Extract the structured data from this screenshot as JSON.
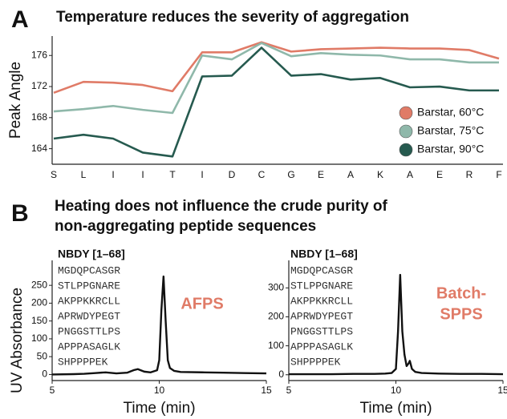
{
  "panels": {
    "a": "A",
    "b": "B",
    "b_title": [
      "Heating does not influence the crude purity of",
      "non-aggregating peptide sequences"
    ]
  },
  "chart_data": [
    {
      "type": "line",
      "title": "Temperature reduces the severity of aggregation",
      "ylabel": "Peak Angle",
      "categories": [
        "S",
        "L",
        "I",
        "I",
        "T",
        "I",
        "D",
        "C",
        "G",
        "E",
        "A",
        "K",
        "A",
        "E",
        "R",
        "F"
      ],
      "ylim": [
        162,
        178.5
      ],
      "yticks": [
        164,
        168,
        172,
        176
      ],
      "legend": "lower right",
      "series": [
        {
          "name": "Barstar, 60°C",
          "color": "#e07b67",
          "values": [
            171.2,
            172.6,
            172.5,
            172.2,
            171.4,
            176.4,
            176.4,
            177.7,
            176.5,
            176.8,
            176.9,
            177.0,
            176.9,
            176.9,
            176.7,
            175.6
          ]
        },
        {
          "name": "Barstar, 75°C",
          "color": "#8fb8aa",
          "values": [
            168.8,
            169.1,
            169.5,
            169.0,
            168.6,
            176.0,
            175.5,
            177.6,
            175.9,
            176.3,
            176.1,
            176.0,
            175.5,
            175.5,
            175.1,
            175.1
          ]
        },
        {
          "name": "Barstar, 90°C",
          "color": "#265a4f",
          "values": [
            165.3,
            165.8,
            165.3,
            163.5,
            163.0,
            173.3,
            173.4,
            177.0,
            173.4,
            173.6,
            172.9,
            173.1,
            171.9,
            172.0,
            171.5,
            171.5
          ]
        }
      ]
    },
    {
      "type": "line",
      "title": "NBDY [1–68]",
      "ylabel": "UV Absorbance",
      "xlabel": "Time (min)",
      "sequence": [
        "MGDQPCASGR",
        "STLPPGNARE",
        "AKPPKKRCLL",
        "APRWDYPEGT",
        "PNGGSTTLPS",
        "APPPASAGLK",
        "SHPPPPEK"
      ],
      "method_label": [
        "AFPS"
      ],
      "method_color": "#e07b67",
      "xlim": [
        5,
        15
      ],
      "xticks": [
        5,
        10,
        15
      ],
      "ylim": [
        -17,
        320
      ],
      "yticks": [
        0,
        50,
        100,
        150,
        200,
        250
      ],
      "series": [
        {
          "color": "#111111",
          "x": [
            5,
            6,
            6.5,
            7,
            7.5,
            8,
            8.5,
            8.8,
            9,
            9.3,
            9.6,
            9.9,
            10.0,
            10.1,
            10.2,
            10.3,
            10.4,
            10.5,
            10.7,
            11,
            12,
            13,
            14,
            15
          ],
          "values": [
            0,
            1,
            2,
            4,
            6,
            3,
            5,
            12,
            15,
            8,
            6,
            12,
            40,
            180,
            275,
            150,
            40,
            18,
            10,
            7,
            6,
            5,
            4,
            3
          ]
        }
      ]
    },
    {
      "type": "line",
      "title": "NBDY [1–68]",
      "xlabel": "Time (min)",
      "sequence": [
        "MGDQPCASGR",
        "STLPPGNARE",
        "AKPPKKRCLL",
        "APRWDYPEGT",
        "PNGGSTTLPS",
        "APPPASAGLK",
        "SHPPPPEK"
      ],
      "method_label": [
        "Batch-",
        "SPPS"
      ],
      "method_color": "#e07b67",
      "xlim": [
        5,
        15
      ],
      "xticks": [
        5,
        10,
        15
      ],
      "ylim": [
        -20,
        395
      ],
      "yticks": [
        0,
        100,
        200,
        300
      ],
      "series": [
        {
          "color": "#111111",
          "x": [
            5,
            6,
            7,
            8,
            9,
            9.5,
            9.8,
            10.0,
            10.1,
            10.2,
            10.3,
            10.4,
            10.5,
            10.6,
            10.65,
            10.75,
            10.9,
            11.2,
            12,
            13,
            14,
            15
          ],
          "values": [
            2,
            2,
            2,
            3,
            3,
            4,
            6,
            20,
            150,
            345,
            150,
            70,
            30,
            40,
            48,
            20,
            10,
            6,
            4,
            3,
            3,
            2
          ]
        }
      ]
    }
  ]
}
